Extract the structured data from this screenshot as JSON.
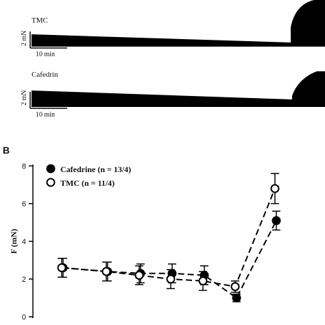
{
  "panel_a": {
    "traces": [
      {
        "label": "TMC",
        "scale_y": "2 mN",
        "scale_x": "10 min"
      },
      {
        "label": "Cafedrin",
        "scale_y": "2 mN",
        "scale_x": "10 min"
      }
    ]
  },
  "chart_data": {
    "type": "line",
    "panel_label": "B",
    "ylabel": "F (mN)",
    "xlabel": "",
    "ylim": [
      0,
      8
    ],
    "yticks": [
      0,
      2,
      4,
      6,
      8
    ],
    "x": [
      1,
      2,
      3,
      4,
      5,
      6,
      7
    ],
    "legend_position": "top-left",
    "series": [
      {
        "name": "Cafedrine (n = 13/4)",
        "marker": "filled-circle",
        "values": [
          2.6,
          2.4,
          2.3,
          2.3,
          2.2,
          1.0,
          5.1
        ],
        "errors": [
          0.5,
          0.5,
          0.5,
          0.5,
          0.5,
          0.2,
          0.5
        ]
      },
      {
        "name": "TMC (n = 11/4)",
        "marker": "open-circle",
        "values": [
          2.6,
          2.4,
          2.2,
          2.0,
          1.9,
          1.6,
          6.8
        ],
        "errors": [
          0.5,
          0.5,
          0.5,
          0.5,
          0.5,
          0.3,
          0.8
        ]
      }
    ],
    "line_style": "dashed"
  }
}
